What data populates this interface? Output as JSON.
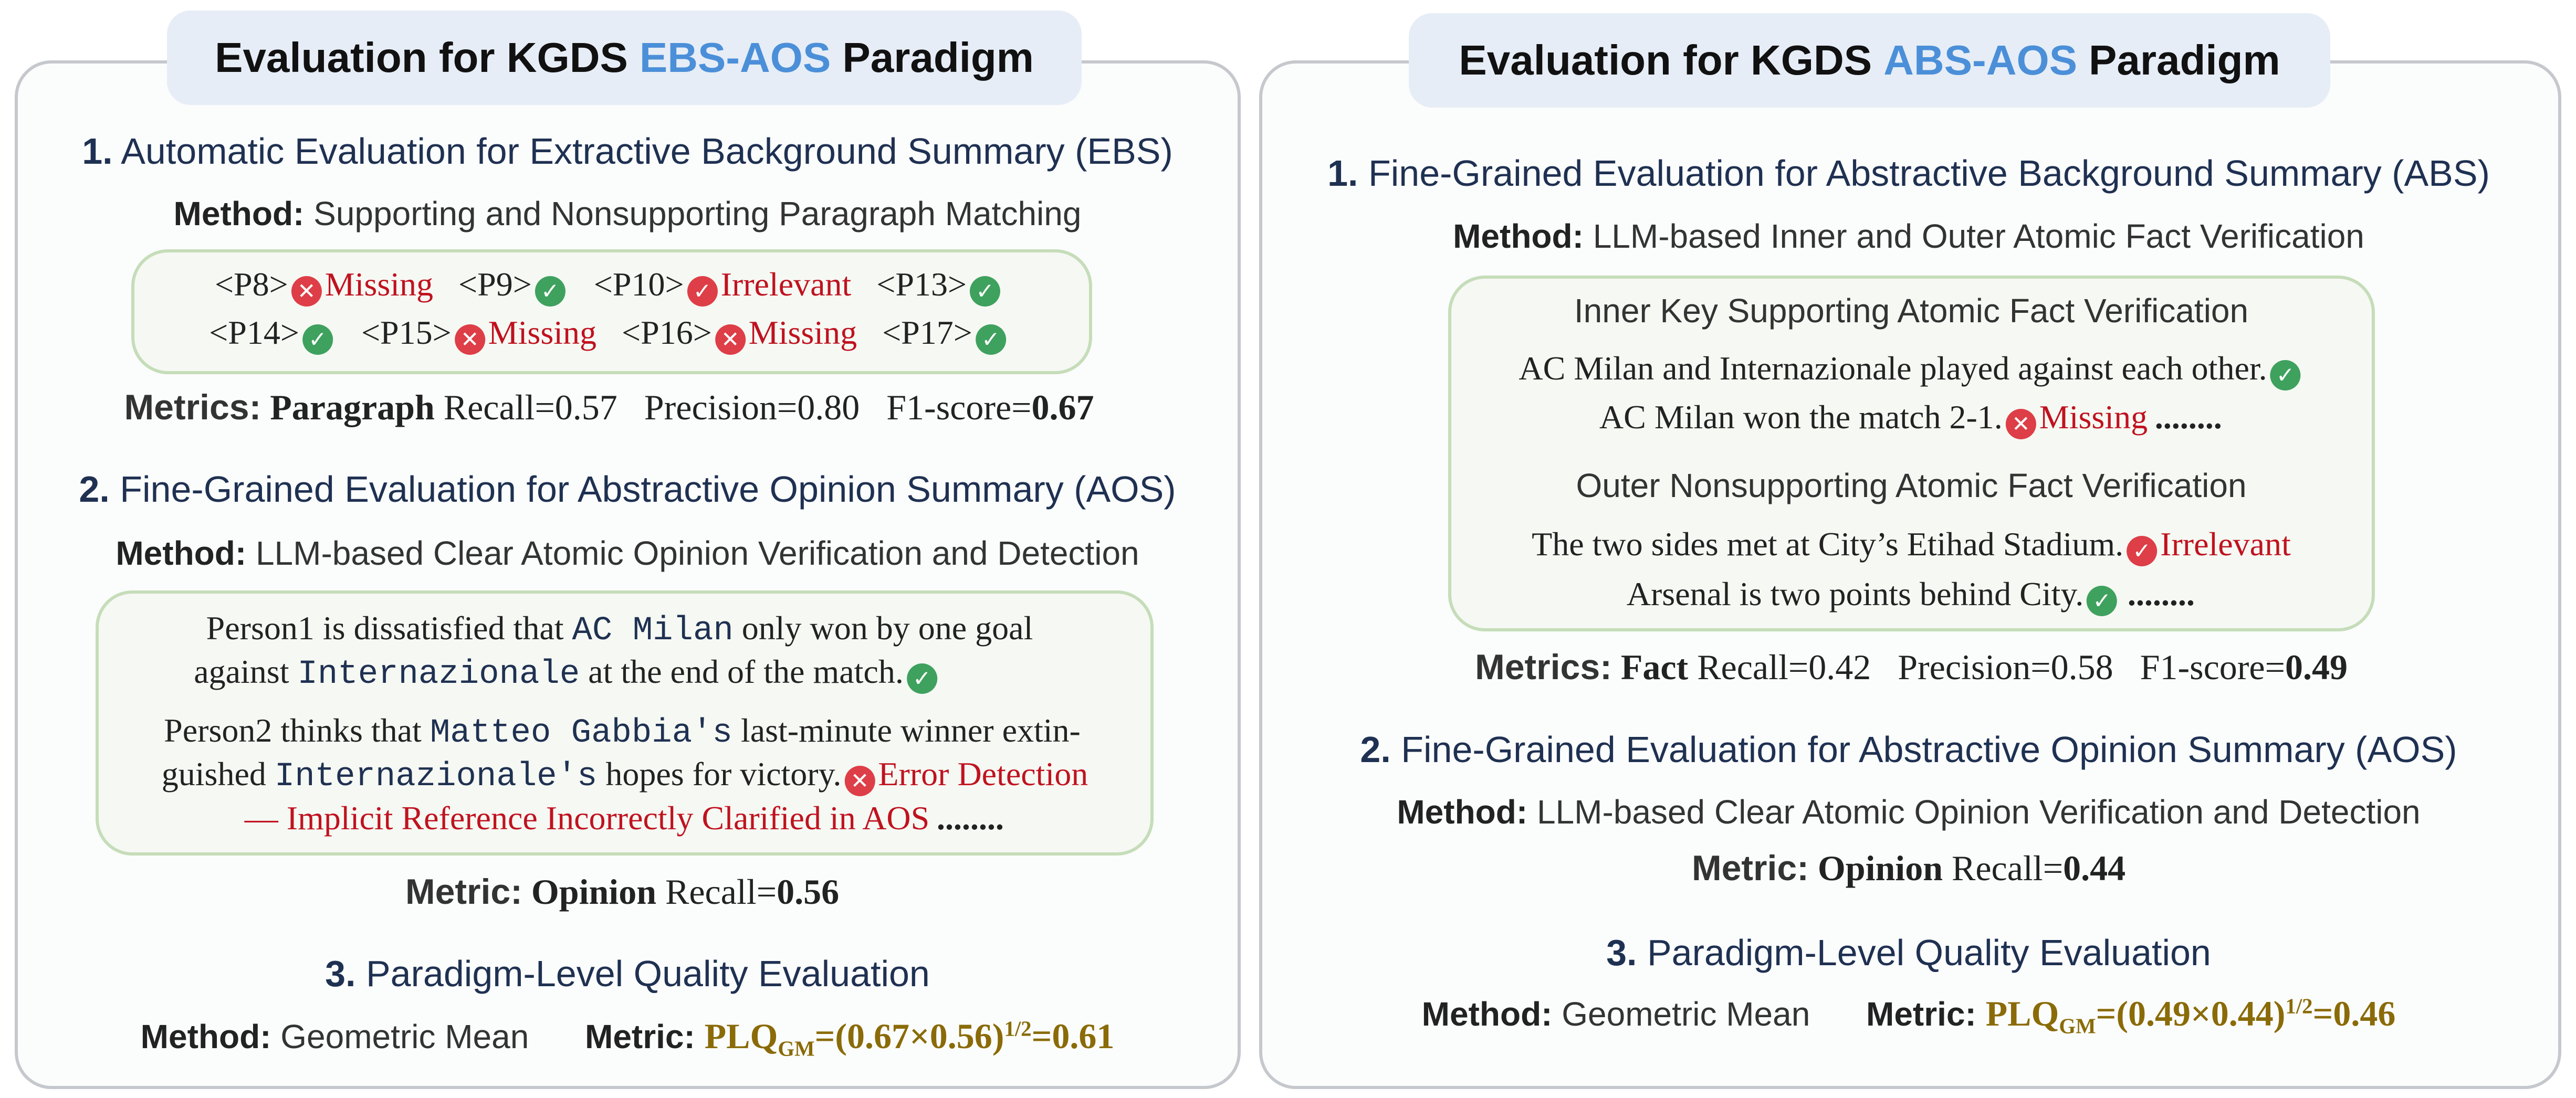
{
  "left": {
    "title_pre": "Evaluation for KGDS",
    "title_hl": "EBS-AOS",
    "title_post": "Paradigm",
    "s1_num": "1.",
    "s1_title": "Automatic Evaluation for Extractive Background Summary (EBS)",
    "s1_method_label": "Method:",
    "s1_method": "Supporting and Nonsupporting Paragraph Matching",
    "paragraphs": [
      {
        "tag": "<P8>",
        "mark": "missing",
        "status": "Missing"
      },
      {
        "tag": "<P9>",
        "mark": "check",
        "status": ""
      },
      {
        "tag": "<P10>",
        "mark": "irrelevant",
        "status": "Irrelevant"
      },
      {
        "tag": "<P13>",
        "mark": "check",
        "status": ""
      },
      {
        "tag": "<P14>",
        "mark": "check",
        "status": ""
      },
      {
        "tag": "<P15>",
        "mark": "missing",
        "status": "Missing"
      },
      {
        "tag": "<P16>",
        "mark": "missing",
        "status": "Missing"
      },
      {
        "tag": "<P17>",
        "mark": "check",
        "status": ""
      }
    ],
    "s1_metrics_label": "Metrics:",
    "s1_metrics_bold": "Paragraph",
    "s1_metrics_text": "Recall=0.57   Precision=0.80   F1-score=",
    "s1_f1": "0.67",
    "s2_num": "2.",
    "s2_title": "Fine-Grained Evaluation for Abstractive Opinion Summary (AOS)",
    "s2_method_label": "Method:",
    "s2_method": "LLM-based Clear Atomic Opinion Verification and Detection",
    "op1_a": "Person1 is dissatisfied that",
    "op1_code1": "AC Milan",
    "op1_b": "only won by one goal",
    "op1_c": "against",
    "op1_code2": "Internazionale",
    "op1_d": "at the end of the match.",
    "op2_a": "Person2 thinks that",
    "op2_code1": "Matteo Gabbia's",
    "op2_b": "last-minute winner extin-",
    "op2_c": "guished",
    "op2_code2": "Internazionale's",
    "op2_d": "hopes for victory.",
    "op2_err": "Error Detection",
    "op2_err2": "— Implicit Reference Incorrectly Clarified in AOS",
    "dots": "........",
    "s2_metric_label": "Metric:",
    "s2_metric_bold": "Opinion",
    "s2_metric_text": "Recall=",
    "s2_metric_val": "0.56",
    "s3_num": "3.",
    "s3_title": "Paradigm-Level Quality Evaluation",
    "s3_method_label": "Method:",
    "s3_method": "Geometric Mean",
    "s3_metric_label": "Metric:",
    "s3_formula_a": "PLQ",
    "s3_formula_sub": "GM",
    "s3_formula_b": "=(0.67×0.56)",
    "s3_formula_sup": "1/2",
    "s3_formula_c": "=0.61"
  },
  "right": {
    "title_pre": "Evaluation for KGDS",
    "title_hl": "ABS-AOS",
    "title_post": "Paradigm",
    "s1_num": "1.",
    "s1_title": "Fine-Grained Evaluation for Abstractive Background Summary (ABS)",
    "s1_method_label": "Method:",
    "s1_method": "LLM-based Inner and Outer Atomic Fact Verification",
    "inner_title": "Inner Key Supporting Atomic Fact Verification",
    "inner_f1": "AC Milan and Internazionale played against each other.",
    "inner_f2": "AC Milan won the match 2-1.",
    "inner_f2_status": "Missing",
    "outer_title": "Outer Nonsupporting Atomic Fact Verification",
    "outer_f1": "The two sides met at City’s Etihad Stadium.",
    "outer_f1_status": "Irrelevant",
    "outer_f2": "Arsenal is two points behind City.",
    "dots": "........",
    "s1_metrics_label": "Metrics:",
    "s1_metrics_bold": "Fact",
    "s1_metrics_text": "Recall=0.42   Precision=0.58   F1-score=",
    "s1_f1": "0.49",
    "s2_num": "2.",
    "s2_title": "Fine-Grained Evaluation for Abstractive Opinion Summary (AOS)",
    "s2_method_label": "Method:",
    "s2_method": "LLM-based Clear Atomic Opinion Verification and Detection",
    "s2_metric_label": "Metric:",
    "s2_metric_bold": "Opinion",
    "s2_metric_text": "Recall=",
    "s2_metric_val": "0.44",
    "s3_num": "3.",
    "s3_title": "Paradigm-Level Quality Evaluation",
    "s3_method_label": "Method:",
    "s3_method": "Geometric Mean",
    "s3_metric_label": "Metric:",
    "s3_formula_a": "PLQ",
    "s3_formula_sub": "GM",
    "s3_formula_b": "=(0.49×0.44)",
    "s3_formula_sup": "1/2",
    "s3_formula_c": "=0.46"
  },
  "colors": {
    "accent": "#4b8fd8",
    "error": "#c0121f",
    "check": "#3fa15e",
    "cross": "#de3e47",
    "gold": "#8a6b08"
  }
}
